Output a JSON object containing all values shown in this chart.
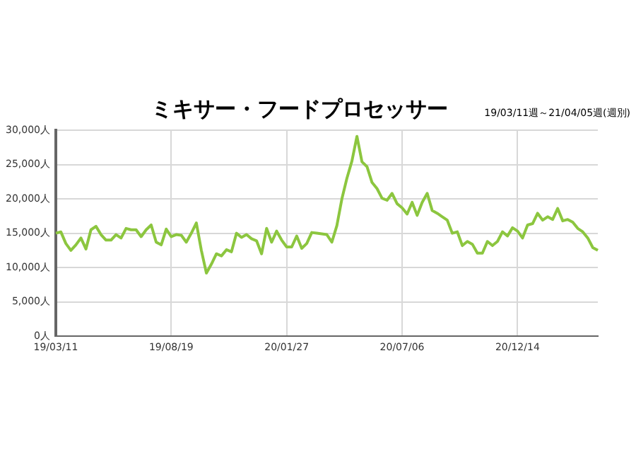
{
  "chart_data": {
    "type": "line",
    "title": "ミキサー・フードプロセッサー",
    "annotations": [
      "19/03/11週～21/04/05週(週別)"
    ],
    "categories": [
      "19/03/11",
      null,
      null,
      null,
      null,
      null,
      null,
      null,
      null,
      null,
      null,
      null,
      null,
      null,
      null,
      null,
      null,
      null,
      null,
      null,
      null,
      null,
      null,
      "19/08/19",
      null,
      null,
      null,
      null,
      null,
      null,
      null,
      null,
      null,
      null,
      null,
      null,
      null,
      null,
      null,
      null,
      null,
      null,
      null,
      null,
      null,
      null,
      "20/01/27",
      null,
      null,
      null,
      null,
      null,
      null,
      null,
      null,
      null,
      null,
      null,
      null,
      null,
      null,
      null,
      null,
      null,
      null,
      null,
      null,
      null,
      null,
      "20/07/06",
      null,
      null,
      null,
      null,
      null,
      null,
      null,
      null,
      null,
      null,
      null,
      null,
      null,
      null,
      null,
      null,
      null,
      null,
      null,
      null,
      null,
      null,
      "20/12/14",
      null,
      null,
      null,
      null,
      null,
      null,
      null,
      null,
      null,
      null,
      null,
      null,
      null,
      null,
      null,
      null
    ],
    "series": [
      {
        "color": "#8cc63f",
        "values": [
          15000,
          15200,
          13500,
          12500,
          13300,
          14300,
          12700,
          15500,
          16000,
          14800,
          14000,
          14000,
          14800,
          14300,
          15700,
          15500,
          15500,
          14500,
          15500,
          16200,
          13700,
          13300,
          15600,
          14500,
          14800,
          14700,
          13700,
          15000,
          16500,
          12500,
          9200,
          10500,
          12000,
          11700,
          12600,
          12300,
          15000,
          14400,
          14800,
          14200,
          13900,
          12000,
          15700,
          13700,
          15300,
          14000,
          13000,
          13000,
          14600,
          12800,
          13500,
          15100,
          15000,
          14900,
          14800,
          13700,
          16100,
          20000,
          23000,
          25500,
          29100,
          25400,
          24700,
          22400,
          21500,
          20100,
          19800,
          20800,
          19300,
          18700,
          17800,
          19500,
          17600,
          19500,
          20800,
          18300,
          17900,
          17400,
          16900,
          15000,
          15200,
          13200,
          13800,
          13400,
          12100,
          12100,
          13800,
          13200,
          13800,
          15200,
          14600,
          15800,
          15300,
          14300,
          16200,
          16400,
          17900,
          16900,
          17400,
          17000,
          18600,
          16800,
          17000,
          16600,
          15700,
          15200,
          14300,
          12900,
          12500
        ]
      }
    ],
    "ylim": [
      0,
      30000
    ],
    "yticks": [
      {
        "value": 0,
        "label": "0人"
      },
      {
        "value": 5000,
        "label": "5,000人"
      },
      {
        "value": 10000,
        "label": "10,000人"
      },
      {
        "value": 15000,
        "label": "15,000人"
      },
      {
        "value": 20000,
        "label": "20,000人"
      },
      {
        "value": 25000,
        "label": "25,000人"
      },
      {
        "value": 30000,
        "label": "30,000人"
      }
    ],
    "grid": true,
    "legend": false,
    "marker": "none",
    "line_style": "solid"
  }
}
